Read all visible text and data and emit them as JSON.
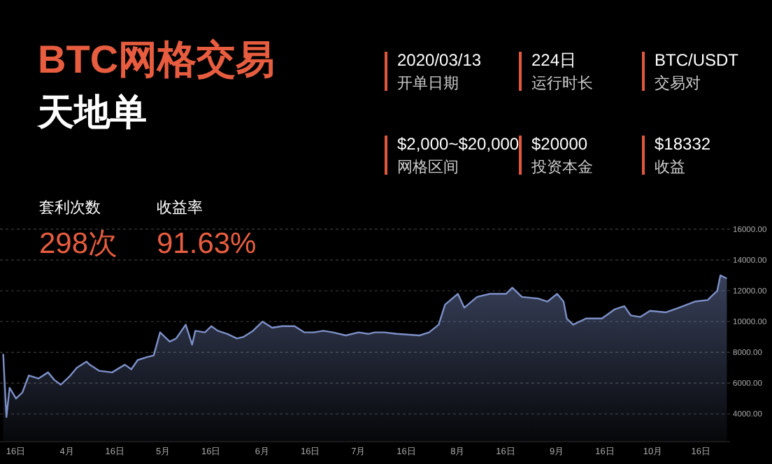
{
  "chart_data": {
    "type": "area",
    "title": "BTC网格交易",
    "subtitle": "天地单",
    "annotations": [
      "2020/03/13",
      "开单日期",
      "224日",
      "运行时长",
      "BTC/USDT",
      "交易对",
      "$2,000~$20,000",
      "网格区间",
      "$20000",
      "投资本金",
      "$18332",
      "收益",
      "套利次数",
      "298次",
      "收益率",
      "91.63%"
    ],
    "xlim": [
      "2020-03-11",
      "2020-10-25"
    ],
    "xticks": [
      {
        "value": "2020-03-16",
        "label": "16日"
      },
      {
        "value": "2020-04-01",
        "label": "4月"
      },
      {
        "value": "2020-04-16",
        "label": "16日"
      },
      {
        "value": "2020-05-01",
        "label": "5月"
      },
      {
        "value": "2020-05-16",
        "label": "16日"
      },
      {
        "value": "2020-06-01",
        "label": "6月"
      },
      {
        "value": "2020-06-16",
        "label": "16日"
      },
      {
        "value": "2020-07-01",
        "label": "7月"
      },
      {
        "value": "2020-07-16",
        "label": "16日"
      },
      {
        "value": "2020-08-01",
        "label": "8月"
      },
      {
        "value": "2020-08-16",
        "label": "16日"
      },
      {
        "value": "2020-09-01",
        "label": "9月"
      },
      {
        "value": "2020-09-16",
        "label": "16日"
      },
      {
        "value": "2020-10-01",
        "label": "10月"
      },
      {
        "value": "2020-10-16",
        "label": "16日"
      }
    ],
    "ylim": [
      2200,
      16000
    ],
    "yticks": [
      {
        "value": 4000,
        "label": "4000.00"
      },
      {
        "value": 6000,
        "label": "6000.00"
      },
      {
        "value": 8000,
        "label": "8000.00"
      },
      {
        "value": 10000,
        "label": "10000.00"
      },
      {
        "value": 12000,
        "label": "12000.00"
      },
      {
        "value": 14000,
        "label": "14000.00"
      },
      {
        "value": 16000,
        "label": "16000.00"
      }
    ],
    "grid": "y",
    "x": [
      "2020-03-12",
      "2020-03-13",
      "2020-03-14",
      "2020-03-16",
      "2020-03-18",
      "2020-03-20",
      "2020-03-23",
      "2020-03-26",
      "2020-03-28",
      "2020-03-30",
      "2020-04-02",
      "2020-04-04",
      "2020-04-07",
      "2020-04-08",
      "2020-04-11",
      "2020-04-15",
      "2020-04-19",
      "2020-04-21",
      "2020-04-23",
      "2020-04-26",
      "2020-04-28",
      "2020-04-30",
      "2020-05-03",
      "2020-05-05",
      "2020-05-08",
      "2020-05-10",
      "2020-05-11",
      "2020-05-14",
      "2020-05-16",
      "2020-05-18",
      "2020-05-21",
      "2020-05-24",
      "2020-05-26",
      "2020-05-29",
      "2020-06-01",
      "2020-06-04",
      "2020-06-07",
      "2020-06-11",
      "2020-06-14",
      "2020-06-17",
      "2020-06-20",
      "2020-06-23",
      "2020-06-27",
      "2020-07-01",
      "2020-07-04",
      "2020-07-06",
      "2020-07-09",
      "2020-07-13",
      "2020-07-20",
      "2020-07-23",
      "2020-07-26",
      "2020-07-28",
      "2020-08-01",
      "2020-08-03",
      "2020-08-07",
      "2020-08-11",
      "2020-08-16",
      "2020-08-18",
      "2020-08-21",
      "2020-08-26",
      "2020-08-29",
      "2020-09-01",
      "2020-09-03",
      "2020-09-04",
      "2020-09-06",
      "2020-09-10",
      "2020-09-15",
      "2020-09-19",
      "2020-09-22",
      "2020-09-24",
      "2020-09-27",
      "2020-09-30",
      "2020-10-05",
      "2020-10-09",
      "2020-10-14",
      "2020-10-18",
      "2020-10-21",
      "2020-10-22",
      "2020-10-24"
    ],
    "series": [
      {
        "color": "#7d90c8",
        "values": [
          7900,
          3800,
          5700,
          5000,
          5400,
          6500,
          6300,
          6700,
          6200,
          5900,
          6500,
          7000,
          7400,
          7200,
          6800,
          6700,
          7200,
          6900,
          7500,
          7700,
          7800,
          9300,
          8700,
          8900,
          9800,
          8500,
          9400,
          9300,
          9700,
          9400,
          9200,
          8900,
          9000,
          9400,
          10000,
          9600,
          9700,
          9700,
          9300,
          9300,
          9400,
          9300,
          9100,
          9300,
          9200,
          9300,
          9300,
          9200,
          9100,
          9300,
          9800,
          11100,
          11800,
          10900,
          11600,
          11800,
          11800,
          12200,
          11600,
          11500,
          11300,
          11800,
          11300,
          10200,
          9800,
          10200,
          10200,
          10800,
          11000,
          10400,
          10300,
          10700,
          10600,
          10900,
          11300,
          11400,
          12000,
          13000,
          12800
        ]
      }
    ]
  }
}
